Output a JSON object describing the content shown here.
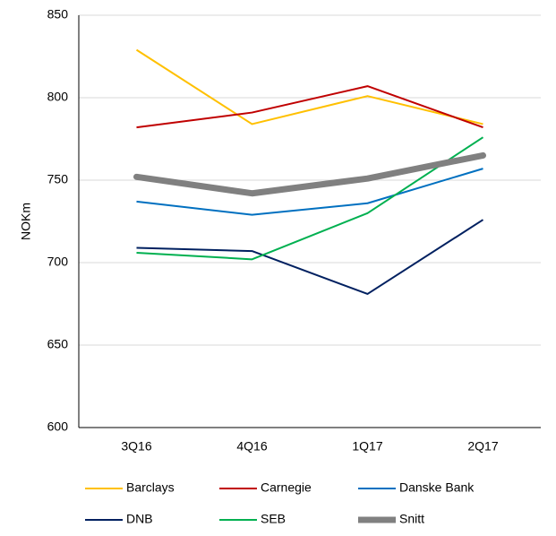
{
  "chart_data": {
    "type": "line",
    "y_label": "NOKm",
    "categories": [
      "3Q16",
      "4Q16",
      "1Q17",
      "2Q17"
    ],
    "series": [
      {
        "name": "Barclays",
        "color": "#ffc000",
        "width": 2,
        "values": [
          829,
          784,
          801,
          784
        ]
      },
      {
        "name": "Carnegie",
        "color": "#c00000",
        "width": 2,
        "values": [
          782,
          791,
          807,
          782
        ]
      },
      {
        "name": "Danske Bank",
        "color": "#0070c0",
        "width": 2,
        "values": [
          737,
          729,
          736,
          757
        ]
      },
      {
        "name": "DNB",
        "color": "#002060",
        "width": 2,
        "values": [
          709,
          707,
          681,
          726
        ]
      },
      {
        "name": "SEB",
        "color": "#00b050",
        "width": 2,
        "values": [
          706,
          702,
          730,
          776
        ]
      },
      {
        "name": "Snitt",
        "color": "#808080",
        "width": 7,
        "values": [
          752,
          742,
          751,
          765
        ]
      }
    ],
    "ylim": [
      600,
      850
    ],
    "yticks": [
      600,
      650,
      700,
      750,
      800,
      850
    ],
    "grid": true,
    "legend": "bottom"
  }
}
